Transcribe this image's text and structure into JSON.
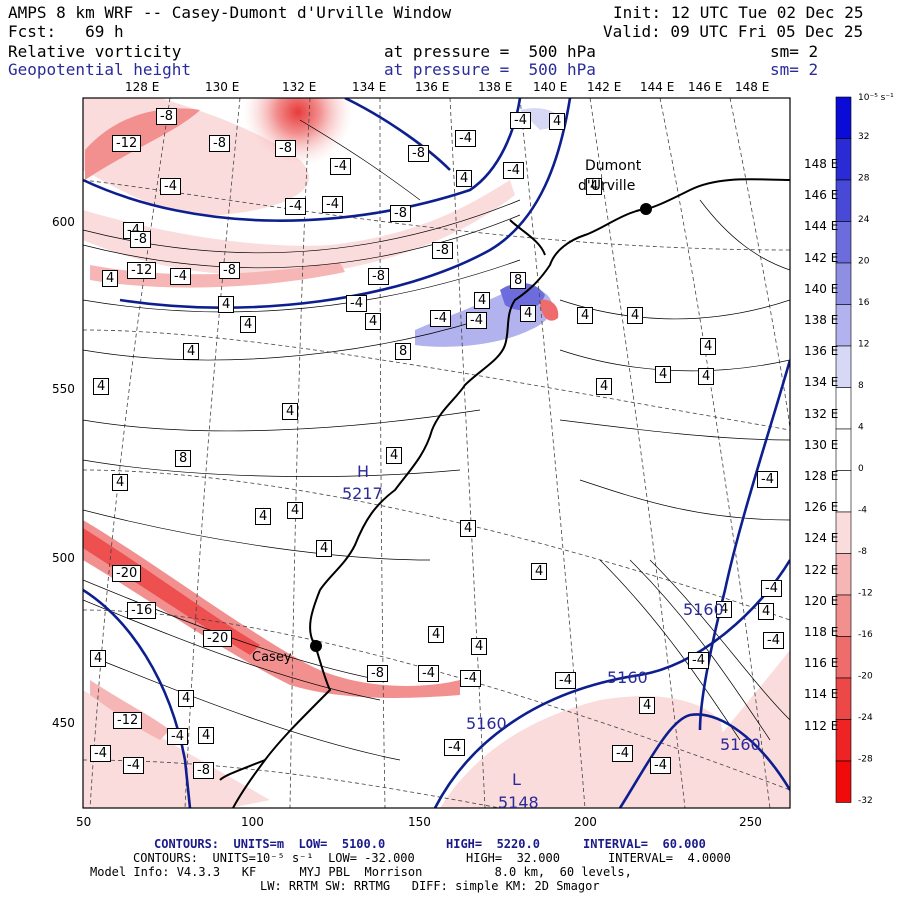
{
  "header": {
    "title": "AMPS 8 km WRF -- Casey-Dumont d'Urville Window",
    "init": "Init: 12 UTC Tue 02 Dec 25",
    "fcst": "Fcst:   69 h",
    "valid": "Valid: 09 UTC Fri 05 Dec 25",
    "field1_name": "Relative vorticity",
    "field1_level": "at pressure =  500 hPa",
    "field1_sm": "sm= 2",
    "field2_name": "Geopotential height",
    "field2_level": "at pressure =  500 hPa",
    "field2_sm": "sm= 2"
  },
  "top_lon_labels": [
    "128 E",
    "130 E",
    "132 E",
    "134 E",
    "136 E",
    "138 E",
    "140 E",
    "142 E",
    "144 E",
    "146 E",
    "148 E"
  ],
  "right_lon_labels": [
    "148 E",
    "146 E",
    "144 E",
    "142 E",
    "140 E",
    "138 E",
    "136 E",
    "134 E",
    "132 E",
    "130 E",
    "128 E",
    "126 E",
    "124 E",
    "122 E",
    "120 E",
    "118 E",
    "116 E",
    "114 E",
    "112 E"
  ],
  "left_axis": [
    "600",
    "550",
    "500",
    "450"
  ],
  "bottom_axis": [
    "50",
    "100",
    "150",
    "200",
    "250"
  ],
  "colorbar": {
    "unit": "10⁻⁵ s⁻¹",
    "labels": [
      "32",
      "28",
      "24",
      "20",
      "16",
      "12",
      "8",
      "4",
      "0",
      "-4",
      "-8",
      "-12",
      "-16",
      "-20",
      "-24",
      "-28",
      "-32"
    ],
    "colors": [
      "#0b0bd8",
      "#2b2bd6",
      "#4949d8",
      "#6c6cdd",
      "#8e8ee3",
      "#b2b2ee",
      "#d7d7f6",
      "#ffffff",
      "#ffffff",
      "#ffffff",
      "#fbdcdc",
      "#f6b6b6",
      "#f29090",
      "#ee6c6c",
      "#ec4848",
      "#ee2424",
      "#f00a0a"
    ]
  },
  "map_labels": {
    "casey": "Casey",
    "dumont": "Dumont",
    "durville": "d'Urville",
    "high": "H",
    "high_value": "5217",
    "low": "L",
    "low_value": "5148",
    "contour_5160_a": "5160",
    "contour_5160_b": "5160",
    "contour_5160_c": "5160",
    "contour_5160_d": "5160"
  },
  "footer": {
    "line1_a": "CONTOURS:  UNITS=m  LOW=  5100.0",
    "line1_b": "HIGH=  5220.0",
    "line1_c": "INTERVAL=  60.000",
    "line2_a": "CONTOURS:  UNITS=10⁻⁵ s⁻¹  LOW= -32.000",
    "line2_b": "HIGH=  32.000",
    "line2_c": "INTERVAL=  4.0000",
    "line3": "Model Info: V4.3.3   KF      MYJ PBL  Morrison          8.0 km,  60 levels,",
    "line4": "LW: RRTM SW: RRTMG   DIFF: simple KM: 2D Smagor"
  },
  "vorticity_labels": [
    "-8",
    "-12",
    "-8",
    "-8",
    "-4",
    "-8",
    "-4",
    "-4",
    "4",
    "-4",
    "4",
    "-4",
    "4",
    "-4",
    "-8",
    "-4",
    "-8",
    "-4",
    "-8",
    "-12",
    "4",
    "-4",
    "-8",
    "-8",
    "-4",
    "4",
    "4",
    "4",
    "-4",
    "4",
    "4",
    "-4",
    "4",
    "8",
    "4",
    "4",
    "8",
    "4",
    "4",
    "4",
    "4",
    "4",
    "4",
    "8",
    "4",
    "4",
    "4",
    "4",
    "4",
    "4",
    "4",
    "4",
    "-20",
    "-16",
    "-20",
    "-8",
    "-4",
    "-4",
    "-4",
    "4",
    "4",
    "4",
    "-4",
    "-12",
    "-4",
    "-8",
    "4",
    "-4",
    "4",
    "-4",
    "4",
    "4",
    "-4",
    "-4",
    "-4",
    "-4",
    "-4",
    "-4"
  ]
}
